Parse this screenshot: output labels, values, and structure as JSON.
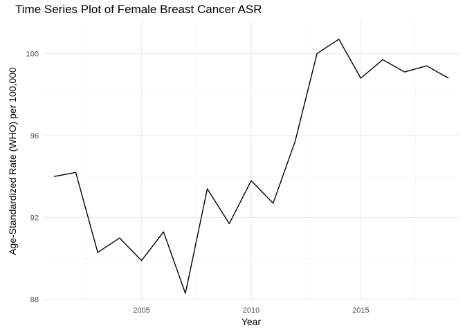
{
  "chart_data": {
    "type": "line",
    "title": "Time Series Plot of Female Breast Cancer ASR",
    "xlabel": "Year",
    "ylabel": "Age-Standardized Rate (WHO) per 100,000",
    "xlim": [
      2000.5,
      2019.5
    ],
    "ylim": [
      87.9,
      101.6
    ],
    "x_ticks": [
      2005,
      2010,
      2015
    ],
    "x_minor_ticks": [
      2002.5,
      2007.5,
      2012.5,
      2017.5
    ],
    "y_ticks": [
      88,
      92,
      96,
      100
    ],
    "y_minor_ticks": [
      90,
      94,
      98
    ],
    "grid": true,
    "legend": "none",
    "series": [
      {
        "x": [
          2001,
          2002,
          2003,
          2004,
          2005,
          2006,
          2007,
          2008,
          2009,
          2010,
          2011,
          2012,
          2013,
          2014,
          2015,
          2016,
          2017,
          2018,
          2019
        ],
        "y": [
          94.0,
          94.2,
          90.3,
          91.0,
          89.9,
          91.3,
          88.3,
          93.4,
          91.7,
          93.8,
          92.7,
          95.7,
          100.0,
          100.7,
          98.8,
          99.7,
          99.1,
          99.4,
          98.8
        ]
      }
    ]
  }
}
